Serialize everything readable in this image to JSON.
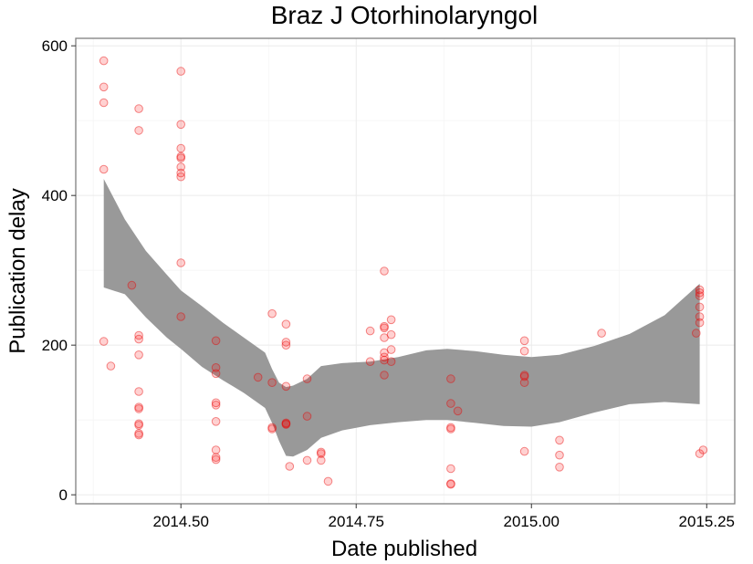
{
  "chart_data": {
    "type": "scatter",
    "title": "Braz J Otorhinolaryngol",
    "xlabel": "Date published",
    "ylabel": "Publication delay",
    "xlim": [
      2014.35,
      2015.29
    ],
    "ylim": [
      -12,
      610
    ],
    "x_ticks": [
      2014.5,
      2014.75,
      2015.0,
      2015.25
    ],
    "x_tick_labels": [
      "2014.50",
      "2014.75",
      "2015.00",
      "2015.25"
    ],
    "y_ticks": [
      0,
      200,
      400,
      600
    ],
    "y_tick_labels": [
      "0",
      "200",
      "400",
      "600"
    ],
    "x_minor_ticks": [
      2014.375,
      2014.625,
      2014.875,
      2015.125
    ],
    "y_minor_ticks": [
      100,
      300,
      500
    ],
    "grid": true,
    "legend": "none",
    "point_color": "#ff0000",
    "ribbon_color": "#999999",
    "points": [
      {
        "x": 2014.39,
        "y": 580
      },
      {
        "x": 2014.39,
        "y": 545
      },
      {
        "x": 2014.39,
        "y": 524
      },
      {
        "x": 2014.39,
        "y": 435
      },
      {
        "x": 2014.39,
        "y": 205
      },
      {
        "x": 2014.4,
        "y": 172
      },
      {
        "x": 2014.43,
        "y": 280
      },
      {
        "x": 2014.44,
        "y": 516
      },
      {
        "x": 2014.44,
        "y": 487
      },
      {
        "x": 2014.44,
        "y": 213
      },
      {
        "x": 2014.44,
        "y": 208
      },
      {
        "x": 2014.44,
        "y": 187
      },
      {
        "x": 2014.44,
        "y": 138
      },
      {
        "x": 2014.44,
        "y": 117
      },
      {
        "x": 2014.44,
        "y": 115
      },
      {
        "x": 2014.44,
        "y": 95
      },
      {
        "x": 2014.44,
        "y": 93
      },
      {
        "x": 2014.44,
        "y": 82
      },
      {
        "x": 2014.44,
        "y": 80
      },
      {
        "x": 2014.5,
        "y": 566
      },
      {
        "x": 2014.5,
        "y": 495
      },
      {
        "x": 2014.5,
        "y": 463
      },
      {
        "x": 2014.5,
        "y": 452
      },
      {
        "x": 2014.5,
        "y": 450
      },
      {
        "x": 2014.5,
        "y": 438
      },
      {
        "x": 2014.5,
        "y": 430
      },
      {
        "x": 2014.5,
        "y": 425
      },
      {
        "x": 2014.5,
        "y": 310
      },
      {
        "x": 2014.5,
        "y": 238
      },
      {
        "x": 2014.55,
        "y": 206
      },
      {
        "x": 2014.55,
        "y": 170
      },
      {
        "x": 2014.55,
        "y": 162
      },
      {
        "x": 2014.55,
        "y": 123
      },
      {
        "x": 2014.55,
        "y": 120
      },
      {
        "x": 2014.55,
        "y": 98
      },
      {
        "x": 2014.55,
        "y": 60
      },
      {
        "x": 2014.55,
        "y": 50
      },
      {
        "x": 2014.55,
        "y": 47
      },
      {
        "x": 2014.61,
        "y": 157
      },
      {
        "x": 2014.63,
        "y": 242
      },
      {
        "x": 2014.63,
        "y": 150
      },
      {
        "x": 2014.63,
        "y": 90
      },
      {
        "x": 2014.63,
        "y": 88
      },
      {
        "x": 2014.65,
        "y": 204
      },
      {
        "x": 2014.65,
        "y": 200
      },
      {
        "x": 2014.65,
        "y": 228
      },
      {
        "x": 2014.65,
        "y": 145
      },
      {
        "x": 2014.65,
        "y": 96
      },
      {
        "x": 2014.65,
        "y": 95
      },
      {
        "x": 2014.65,
        "y": 94
      },
      {
        "x": 2014.655,
        "y": 38
      },
      {
        "x": 2014.68,
        "y": 155
      },
      {
        "x": 2014.68,
        "y": 105
      },
      {
        "x": 2014.68,
        "y": 46
      },
      {
        "x": 2014.7,
        "y": 57
      },
      {
        "x": 2014.7,
        "y": 55
      },
      {
        "x": 2014.7,
        "y": 46
      },
      {
        "x": 2014.71,
        "y": 18
      },
      {
        "x": 2014.77,
        "y": 219
      },
      {
        "x": 2014.77,
        "y": 178
      },
      {
        "x": 2014.79,
        "y": 299
      },
      {
        "x": 2014.79,
        "y": 225
      },
      {
        "x": 2014.79,
        "y": 223
      },
      {
        "x": 2014.79,
        "y": 210
      },
      {
        "x": 2014.79,
        "y": 190
      },
      {
        "x": 2014.79,
        "y": 184
      },
      {
        "x": 2014.79,
        "y": 180
      },
      {
        "x": 2014.79,
        "y": 160
      },
      {
        "x": 2014.8,
        "y": 234
      },
      {
        "x": 2014.8,
        "y": 214
      },
      {
        "x": 2014.8,
        "y": 194
      },
      {
        "x": 2014.8,
        "y": 178
      },
      {
        "x": 2014.885,
        "y": 155
      },
      {
        "x": 2014.885,
        "y": 122
      },
      {
        "x": 2014.885,
        "y": 90
      },
      {
        "x": 2014.885,
        "y": 88
      },
      {
        "x": 2014.885,
        "y": 35
      },
      {
        "x": 2014.885,
        "y": 15
      },
      {
        "x": 2014.885,
        "y": 14
      },
      {
        "x": 2014.895,
        "y": 112
      },
      {
        "x": 2014.99,
        "y": 206
      },
      {
        "x": 2014.99,
        "y": 192
      },
      {
        "x": 2014.99,
        "y": 160
      },
      {
        "x": 2014.99,
        "y": 158
      },
      {
        "x": 2014.99,
        "y": 150
      },
      {
        "x": 2014.99,
        "y": 58
      },
      {
        "x": 2015.04,
        "y": 73
      },
      {
        "x": 2015.04,
        "y": 53
      },
      {
        "x": 2015.04,
        "y": 37
      },
      {
        "x": 2015.1,
        "y": 216
      },
      {
        "x": 2015.235,
        "y": 216
      },
      {
        "x": 2015.24,
        "y": 274
      },
      {
        "x": 2015.24,
        "y": 270
      },
      {
        "x": 2015.24,
        "y": 266
      },
      {
        "x": 2015.24,
        "y": 251
      },
      {
        "x": 2015.24,
        "y": 238
      },
      {
        "x": 2015.24,
        "y": 230
      },
      {
        "x": 2015.24,
        "y": 55
      },
      {
        "x": 2015.245,
        "y": 60
      }
    ],
    "confidence_band": {
      "x": [
        2014.39,
        2014.42,
        2014.45,
        2014.48,
        2014.5,
        2014.53,
        2014.56,
        2014.59,
        2014.62,
        2014.63,
        2014.64,
        2014.65,
        2014.66,
        2014.68,
        2014.7,
        2014.73,
        2014.77,
        2014.81,
        2014.85,
        2014.88,
        2014.92,
        2014.96,
        2015.0,
        2015.04,
        2015.09,
        2015.14,
        2015.19,
        2015.24
      ],
      "upper": [
        422,
        368,
        326,
        294,
        273,
        252,
        230,
        210,
        190,
        168,
        150,
        144,
        146,
        155,
        172,
        176,
        178,
        184,
        193,
        195,
        192,
        187,
        184,
        187,
        199,
        215,
        240,
        282
      ],
      "lower": [
        277,
        268,
        237,
        210,
        195,
        171,
        153,
        136,
        116,
        96,
        72,
        52,
        51,
        60,
        76,
        86,
        93,
        97,
        100,
        100,
        96,
        92,
        91,
        97,
        110,
        121,
        124,
        121
      ]
    }
  }
}
